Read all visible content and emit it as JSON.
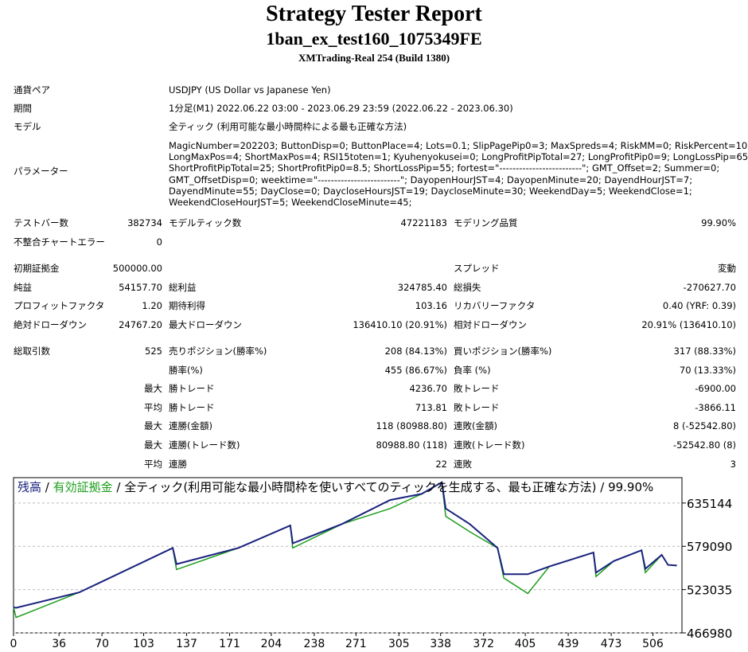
{
  "header": {
    "title": "Strategy Tester Report",
    "subtitle": "1ban_ex_test160_1075349FE",
    "server": "XMTrading-Real 254 (Build 1380)"
  },
  "info": [
    {
      "label": "通貨ペア",
      "value": "USDJPY (US Dollar vs Japanese Yen)"
    },
    {
      "label": "期間",
      "value": "1分足(M1) 2022.06.22 03:00 - 2023.06.29 23:59 (2022.06.22 - 2023.06.30)"
    },
    {
      "label": "モデル",
      "value": "全ティック (利用可能な最小時間枠による最も正確な方法)"
    }
  ],
  "parameters": {
    "label": "パラメーター",
    "lines": [
      "MagicNumber=202203; ButtonDisp=0; ButtonPlace=4; Lots=0.1; SlipPagePip0=3; MaxSpreds=4; RiskMM=0; RiskPercent=10;",
      "LongMaxPos=4; ShortMaxPos=4; RSI15toten=1; Kyuhenyokusei=0; LongProfitPipTotal=27; LongProfitPip0=9; LongLossPip=65;",
      "ShortProfitPipTotal=25; ShortProfitPip0=8.5; ShortLossPip=55; fortest=\"-------------------------\"; GMT_Offset=2; Summer=0;",
      "GMT_OffsetDisp=0; weektime=\"-------------------------\"; DayopenHourJST=4; DayopenMinute=20; DayendHourJST=7;",
      "DayendMinute=55; DayClose=0; DaycloseHoursJST=19; DaycloseMinute=30; WeekendDay=5; WeekendClose=1;",
      "WeekendCloseHourJST=5; WeekendCloseMinute=45;"
    ]
  },
  "stats": [
    [
      [
        "テストバー数",
        "382734",
        "モデルティック数",
        "47221183",
        "モデリング品質",
        "99.90%"
      ],
      [
        "不整合チャートエラー",
        "0",
        null,
        null,
        null,
        null
      ]
    ],
    [
      [
        "初期証拠金",
        "500000.00",
        null,
        null,
        "スプレッド",
        "変動"
      ],
      [
        "純益",
        "54157.70",
        "総利益",
        "324785.40",
        "総損失",
        "-270627.70"
      ],
      [
        "プロフィットファクタ",
        "1.20",
        "期待利得",
        "103.16",
        "リカバリーファクタ",
        "0.40 (YRF: 0.39)"
      ],
      [
        "絶対ドローダウン",
        "24767.20",
        "最大ドローダウン",
        "136410.10 (20.91%)",
        "相対ドローダウン",
        "20.91% (136410.10)"
      ]
    ],
    [
      [
        "総取引数",
        "525",
        "売りポジション(勝率%)",
        "208 (84.13%)",
        "買いポジション(勝率%)",
        "317 (88.33%)"
      ],
      [
        null,
        null,
        "勝率(%)",
        "455 (86.67%)",
        "負率 (%)",
        "70 (13.33%)"
      ],
      [
        null,
        "最大",
        "勝トレード",
        "4236.70",
        "敗トレード",
        "-6900.00"
      ],
      [
        null,
        "平均",
        "勝トレード",
        "713.81",
        "敗トレード",
        "-3866.11"
      ],
      [
        null,
        "最大",
        "連勝(金額)",
        "118 (80988.80)",
        "連敗(金額)",
        "8 (-52542.80)"
      ],
      [
        null,
        "最大",
        "連勝(トレード数)",
        "80988.80 (118)",
        "連敗(トレード数)",
        "-52542.80 (8)"
      ],
      [
        null,
        "平均",
        "連勝",
        "22",
        "連敗",
        "3"
      ]
    ]
  ],
  "chart_data": {
    "type": "line",
    "title_separator": " / ",
    "title_rest": "全ティック(利用可能な最小時間枠を使いすべてのティックを生成する、最も正確な方法) / 99.90%",
    "x": [
      0,
      2,
      52,
      126,
      129,
      178,
      219,
      221,
      260,
      298,
      323,
      339,
      342,
      361,
      383,
      388,
      407,
      424,
      459,
      461,
      475,
      497,
      500,
      513,
      518,
      525
    ],
    "series": [
      {
        "name": "残高",
        "color": "#1a237e",
        "values": [
          500000,
          499500,
          519400,
          577000,
          556000,
          577000,
          606000,
          583000,
          608000,
          639000,
          647000,
          662000,
          628000,
          608000,
          577000,
          543000,
          543000,
          553000,
          571000,
          545000,
          560000,
          574000,
          550000,
          568000,
          555000,
          554157.7
        ]
      },
      {
        "name": "有効証拠金",
        "color": "#1e9e1e",
        "values": [
          500000,
          487000,
          519400,
          577000,
          549000,
          577000,
          606000,
          577000,
          608000,
          628000,
          647000,
          662000,
          618000,
          598000,
          577000,
          538000,
          518000,
          553000,
          571000,
          540000,
          560000,
          574000,
          545000,
          568000,
          555000,
          554157.7
        ]
      }
    ],
    "xlim": [
      0,
      529
    ],
    "ylim": [
      466980,
      668000
    ],
    "xticks": [
      0,
      36,
      70,
      103,
      137,
      171,
      204,
      238,
      271,
      305,
      338,
      372,
      405,
      439,
      473,
      506
    ],
    "yticks": [
      466980,
      523035,
      579090,
      635144
    ],
    "grid": true
  }
}
